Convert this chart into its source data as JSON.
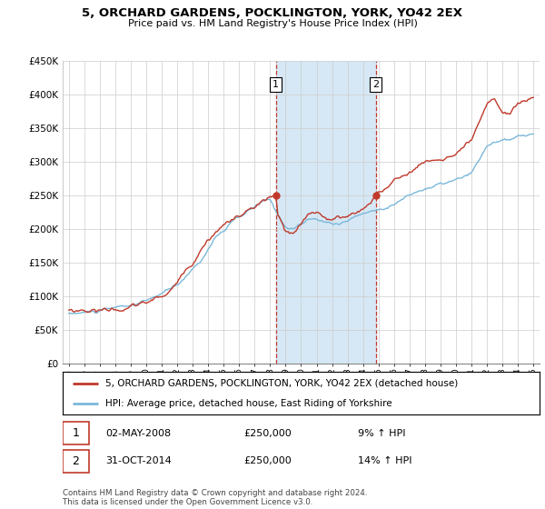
{
  "title": "5, ORCHARD GARDENS, POCKLINGTON, YORK, YO42 2EX",
  "subtitle": "Price paid vs. HM Land Registry's House Price Index (HPI)",
  "legend_line1": "5, ORCHARD GARDENS, POCKLINGTON, YORK, YO42 2EX (detached house)",
  "legend_line2": "HPI: Average price, detached house, East Riding of Yorkshire",
  "transaction1_date": "02-MAY-2008",
  "transaction1_price": "£250,000",
  "transaction1_hpi": "9% ↑ HPI",
  "transaction2_date": "31-OCT-2014",
  "transaction2_price": "£250,000",
  "transaction2_hpi": "14% ↑ HPI",
  "footer": "Contains HM Land Registry data © Crown copyright and database right 2024.\nThis data is licensed under the Open Government Licence v3.0.",
  "ylim": [
    0,
    450000
  ],
  "yticks": [
    0,
    50000,
    100000,
    150000,
    200000,
    250000,
    300000,
    350000,
    400000,
    450000
  ],
  "ytick_labels": [
    "£0",
    "£50K",
    "£100K",
    "£150K",
    "£200K",
    "£250K",
    "£300K",
    "£350K",
    "£400K",
    "£450K"
  ],
  "hpi_color": "#7ab8d9",
  "property_color": "#c0392b",
  "highlight_color": "#d6e8f5",
  "transaction1_x": 2008.37,
  "transaction2_x": 2014.83,
  "xlim_min": 1994.6,
  "xlim_max": 2025.4,
  "background_color": "#ffffff",
  "grid_color": "#cccccc"
}
